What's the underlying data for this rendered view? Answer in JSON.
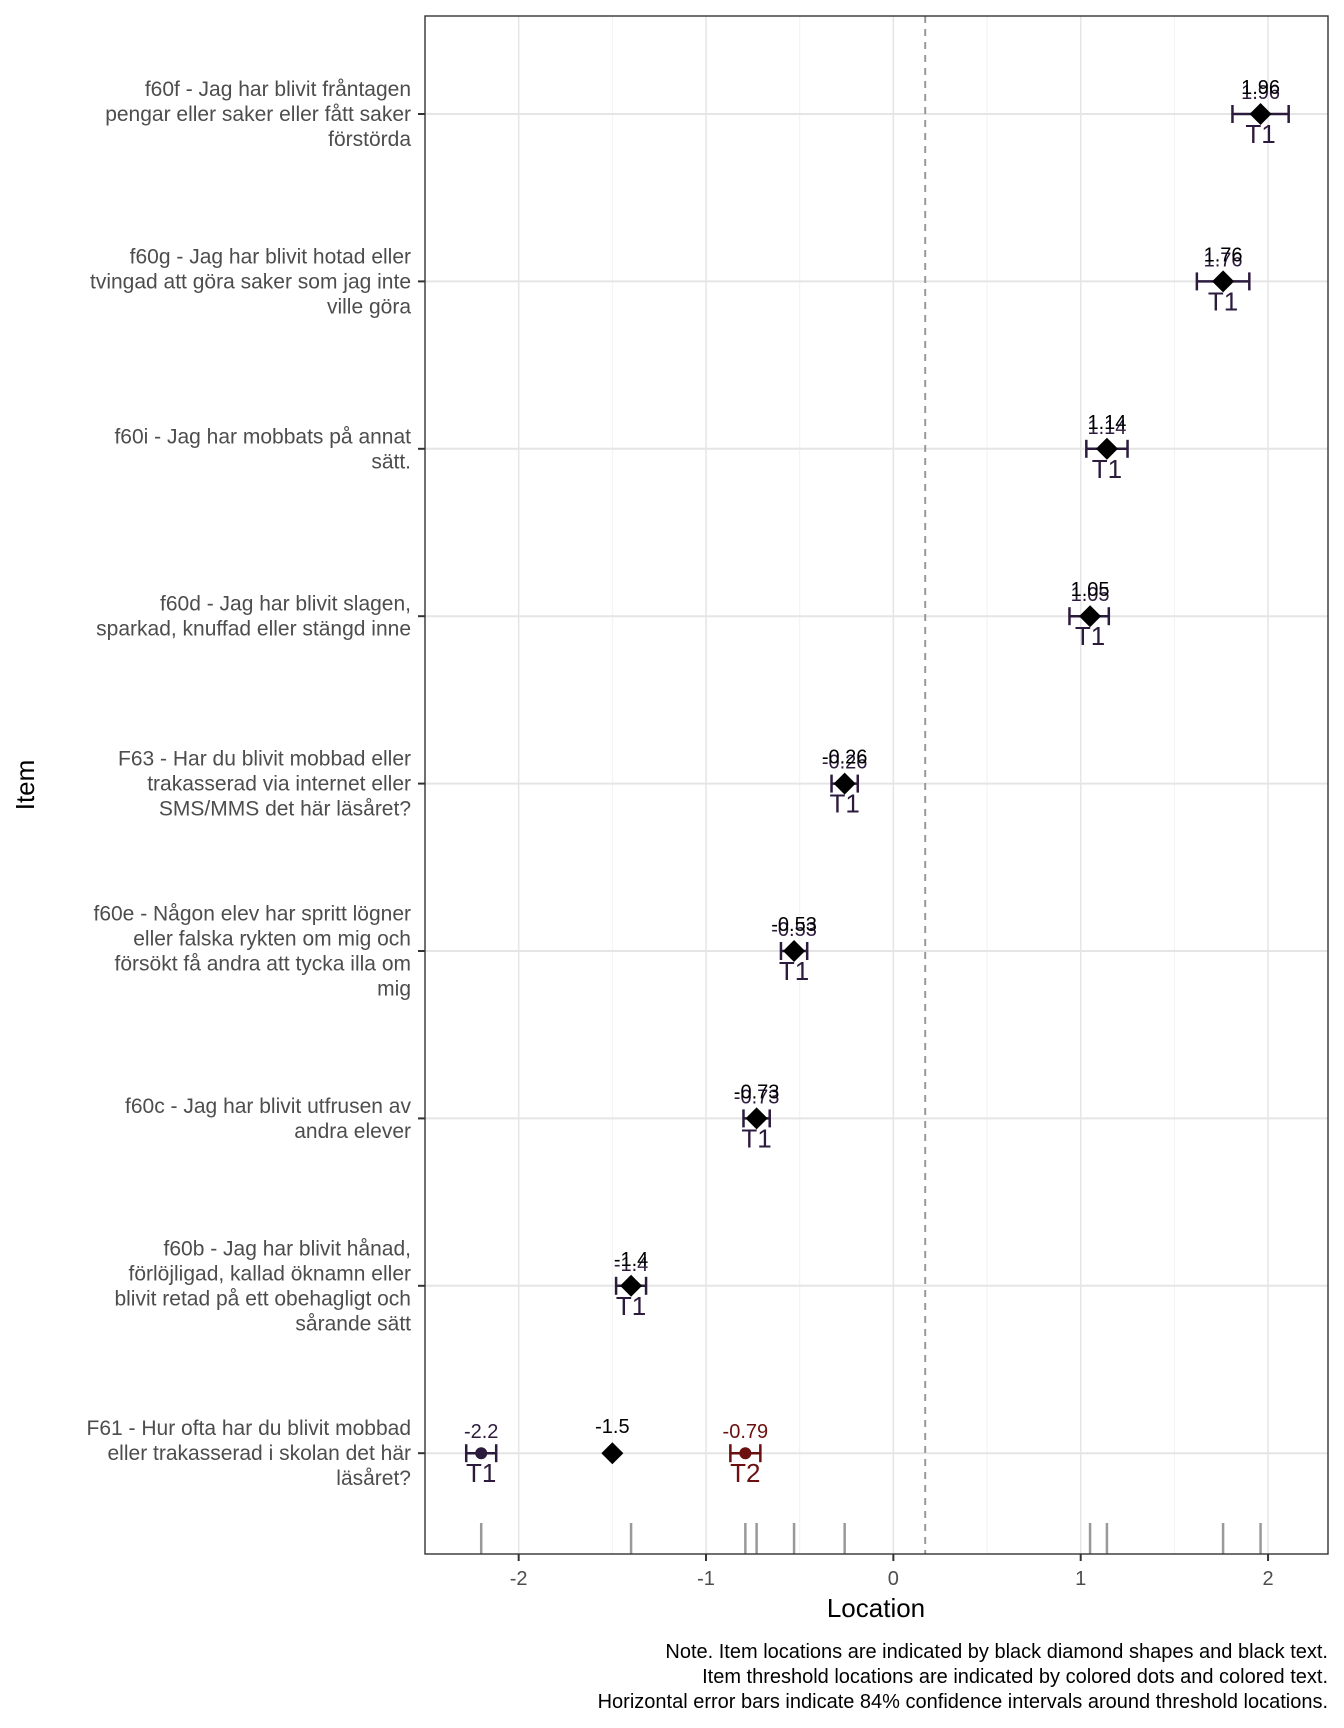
{
  "chart_data": {
    "type": "scatter",
    "xlabel": "Location",
    "ylabel": "Item",
    "xlim": [
      -2.5,
      2.32
    ],
    "x_ticks": [
      "-2",
      "-1",
      "0",
      "1",
      "2"
    ],
    "x_tick_values": [
      -2,
      -1,
      0,
      1,
      2
    ],
    "grid": true,
    "reference_line": {
      "x": 0.17,
      "style": "dashed"
    },
    "item_color": "#000000",
    "threshold_colors": {
      "T1": "#2d1b3d",
      "T2": "#6b0f0f"
    },
    "items": [
      {
        "label_lines": [
          "f60f - Jag har blivit fråntagen",
          "pengar eller saker eller fått saker",
          "förstörda"
        ],
        "location": 1.96,
        "location_label": "1.96",
        "thresholds": [
          {
            "name": "T1",
            "value": 1.96,
            "value_label": "1.96",
            "ci": [
              1.81,
              2.11
            ]
          }
        ]
      },
      {
        "label_lines": [
          "f60g - Jag har blivit hotad eller",
          "tvingad att göra saker som jag inte",
          "ville göra"
        ],
        "location": 1.76,
        "location_label": "1.76",
        "thresholds": [
          {
            "name": "T1",
            "value": 1.76,
            "value_label": "1.76",
            "ci": [
              1.62,
              1.9
            ]
          }
        ]
      },
      {
        "label_lines": [
          "f60i - Jag har mobbats på annat",
          "sätt."
        ],
        "location": 1.14,
        "location_label": "1.14",
        "thresholds": [
          {
            "name": "T1",
            "value": 1.14,
            "value_label": "1.14",
            "ci": [
              1.03,
              1.25
            ]
          }
        ]
      },
      {
        "label_lines": [
          "f60d - Jag har blivit slagen,",
          "sparkad, knuffad eller stängd inne"
        ],
        "location": 1.05,
        "location_label": "1.05",
        "thresholds": [
          {
            "name": "T1",
            "value": 1.05,
            "value_label": "1.05",
            "ci": [
              0.94,
              1.15
            ]
          }
        ]
      },
      {
        "label_lines": [
          "F63 - Har du blivit mobbad eller",
          "trakasserad via internet eller",
          "SMS/MMS det här läsåret?"
        ],
        "location": -0.26,
        "location_label": "-0.26",
        "thresholds": [
          {
            "name": "T1",
            "value": -0.26,
            "value_label": "-0.26",
            "ci": [
              -0.33,
              -0.19
            ]
          }
        ]
      },
      {
        "label_lines": [
          "f60e - Någon elev har spritt lögner",
          "eller falska rykten om mig och",
          "försökt få andra att tycka illa om",
          "mig"
        ],
        "location": -0.53,
        "location_label": "-0.53",
        "thresholds": [
          {
            "name": "T1",
            "value": -0.53,
            "value_label": "-0.53",
            "ci": [
              -0.6,
              -0.46
            ]
          }
        ]
      },
      {
        "label_lines": [
          "f60c - Jag har blivit utfrusen av",
          "andra elever"
        ],
        "location": -0.73,
        "location_label": "-0.73",
        "thresholds": [
          {
            "name": "T1",
            "value": -0.73,
            "value_label": "-0.73",
            "ci": [
              -0.8,
              -0.66
            ]
          }
        ]
      },
      {
        "label_lines": [
          "f60b - Jag har blivit hånad,",
          "förlöjligad, kallad öknamn eller",
          "blivit retad på ett obehagligt och",
          "sårande sätt"
        ],
        "location": -1.4,
        "location_label": "-1.4",
        "thresholds": [
          {
            "name": "T1",
            "value": -1.4,
            "value_label": "-1.4",
            "ci": [
              -1.48,
              -1.32
            ]
          }
        ]
      },
      {
        "label_lines": [
          "F61 - Hur ofta har du blivit mobbad",
          "eller trakasserad i skolan det här",
          "läsåret?"
        ],
        "location": -1.5,
        "location_label": "-1.5",
        "thresholds": [
          {
            "name": "T1",
            "value": -2.2,
            "value_label": "-2.2",
            "ci": [
              -2.28,
              -2.12
            ]
          },
          {
            "name": "T2",
            "value": -0.79,
            "value_label": "-0.79",
            "ci": [
              -0.87,
              -0.71
            ]
          }
        ]
      }
    ],
    "rug_values": [
      -2.2,
      -1.4,
      -0.79,
      -0.73,
      -0.53,
      -0.26,
      1.05,
      1.14,
      1.76,
      1.96
    ],
    "note_lines": [
      "Note. Item locations are indicated by black diamond shapes and black text.",
      "Item threshold locations are indicated by colored dots and colored text.",
      "Horizontal error bars indicate 84% confidence intervals around threshold locations."
    ]
  }
}
